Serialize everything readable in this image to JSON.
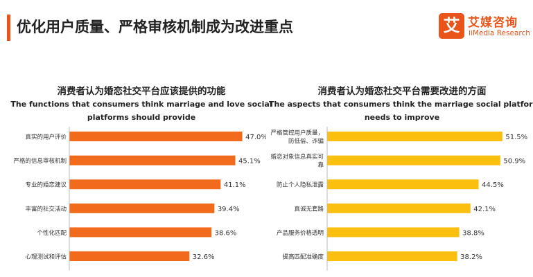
{
  "header": {
    "title": "优化用户质量、严格审核机制成为改进重点",
    "accent_color": "#E8541A"
  },
  "logo": {
    "glyph": "艾",
    "name_cn": "艾媒咨询",
    "name_en": "iiMedia Research",
    "color": "#E8541A"
  },
  "chart_data": [
    {
      "type": "bar",
      "orientation": "horizontal",
      "title_cn": "消费者认为婚恋社交平台应该提供的功能",
      "title_en_line1": "The functions that consumers think marriage and love social",
      "title_en_line2": "platforms should provide",
      "categories": [
        [
          "真实的用户评价"
        ],
        [
          "严格的信息审核机制"
        ],
        [
          "专业的婚恋建议"
        ],
        [
          "丰富的社交活动"
        ],
        [
          "个性化匹配"
        ],
        [
          "心理测试和评估"
        ]
      ],
      "values": [
        47.0,
        45.1,
        41.1,
        39.4,
        38.6,
        32.6
      ],
      "value_labels": [
        "47.0%",
        "45.1%",
        "41.1%",
        "39.4%",
        "38.6%",
        "32.6%"
      ],
      "unit": "%",
      "xlim": [
        0,
        55
      ],
      "color": "#F26B1D",
      "grid": false
    },
    {
      "type": "bar",
      "orientation": "horizontal",
      "title_cn": "消费者认为婚恋社交平台需要改进的方面",
      "title_en_line1": "The aspects that consumers think the marriage social platform",
      "title_en_line2": "needs to improve",
      "categories": [
        [
          "严格管控用户质量，",
          "防低俗、诈骗"
        ],
        [
          "婚恋对象信息真实可",
          "靠"
        ],
        [
          "防止个人隐私泄露"
        ],
        [
          "真诚无套路"
        ],
        [
          "产品服务价格透明"
        ],
        [
          "提高匹配准确度"
        ]
      ],
      "values": [
        51.5,
        50.9,
        44.5,
        42.1,
        38.8,
        38.2
      ],
      "value_labels": [
        "51.5%",
        "50.9%",
        "44.5%",
        "42.1%",
        "38.8%",
        "38.2%"
      ],
      "unit": "%",
      "xlim": [
        0,
        60
      ],
      "color": "#FBBF10",
      "grid": false
    }
  ]
}
